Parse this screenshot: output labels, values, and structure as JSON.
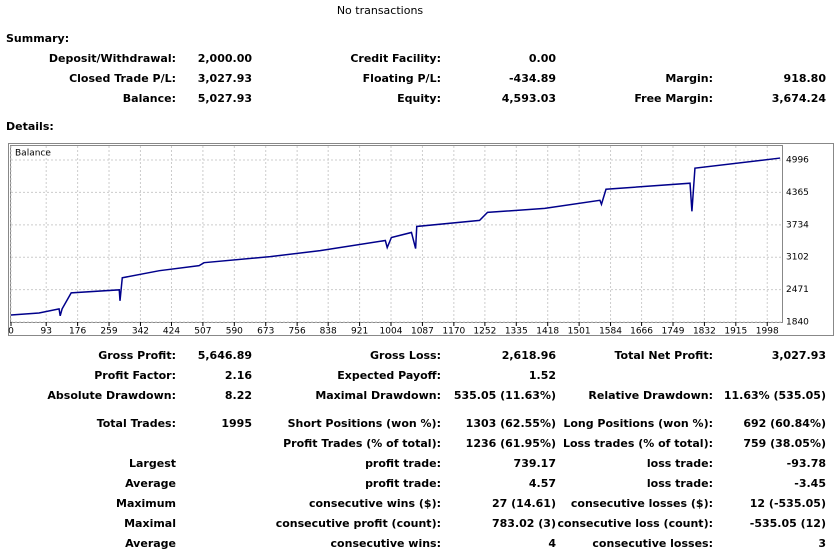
{
  "header": {
    "title": "No transactions"
  },
  "summary": {
    "heading": "Summary:",
    "rows": [
      [
        "Deposit/Withdrawal:",
        "2,000.00",
        "Credit Facility:",
        "0.00",
        null,
        null
      ],
      [
        "Closed Trade P/L:",
        "3,027.93",
        "Floating P/L:",
        "-434.89",
        "Margin:",
        "918.80"
      ],
      [
        "Balance:",
        "5,027.93",
        "Equity:",
        "4,593.03",
        "Free Margin:",
        "3,674.24"
      ]
    ]
  },
  "details": {
    "heading": "Details:",
    "rows": [
      [
        "Gross Profit:",
        "5,646.89",
        "Gross Loss:",
        "2,618.96",
        "Total Net Profit:",
        "3,027.93"
      ],
      [
        "Profit Factor:",
        "2.16",
        "Expected Payoff:",
        "1.52",
        null,
        null
      ],
      [
        "Absolute Drawdown:",
        "8.22",
        "Maximal Drawdown:",
        "535.05 (11.63%)",
        "Relative Drawdown:",
        "11.63% (535.05)"
      ],
      [
        "Total Trades:",
        "1995",
        "Short Positions (won %):",
        "1303 (62.55%)",
        "Long Positions (won %):",
        "692 (60.84%)"
      ],
      [
        null,
        null,
        "Profit Trades (% of total):",
        "1236 (61.95%)",
        "Loss trades (% of total):",
        "759 (38.05%)"
      ],
      [
        "Largest",
        null,
        "profit trade:",
        "739.17",
        "loss trade:",
        "-93.78"
      ],
      [
        "Average",
        null,
        "profit trade:",
        "4.57",
        "loss trade:",
        "-3.45"
      ],
      [
        "Maximum",
        null,
        "consecutive wins ($):",
        "27 (14.61)",
        "consecutive losses ($):",
        "12 (-535.05)"
      ],
      [
        "Maximal",
        null,
        "consecutive profit (count):",
        "783.02 (3)",
        "consecutive loss (count):",
        "-535.05 (12)"
      ],
      [
        "Average",
        null,
        "consecutive wins:",
        "4",
        "consecutive losses:",
        "3"
      ]
    ]
  },
  "chart_data": {
    "type": "line",
    "x": [
      0,
      74,
      127,
      130,
      135,
      159,
      286,
      288,
      294,
      392,
      497,
      510,
      685,
      817,
      989,
      994,
      1005,
      1058,
      1069,
      1072,
      1238,
      1259,
      1410,
      1556,
      1560,
      1572,
      1794,
      1799,
      1807,
      2032
    ],
    "series": [
      {
        "name": "Balance",
        "color": "#00008b",
        "values": [
          1977,
          2016,
          2095,
          1960,
          2095,
          2408,
          2467,
          2252,
          2702,
          2840,
          2938,
          2996,
          3114,
          3232,
          3428,
          3290,
          3487,
          3585,
          3271,
          3702,
          3820,
          3976,
          4055,
          4212,
          4134,
          4427,
          4545,
          3996,
          4839,
          5035
        ]
      }
    ],
    "xlim": [
      0,
      2037
    ],
    "ylim": [
      1840,
      5270
    ],
    "xticks": [
      0,
      93,
      176,
      259,
      342,
      424,
      507,
      590,
      673,
      756,
      838,
      921,
      1004,
      1087,
      1170,
      1252,
      1335,
      1418,
      1501,
      1584,
      1666,
      1749,
      1832,
      1915,
      1998
    ],
    "yticks": [
      1840,
      2471,
      3102,
      3734,
      4365,
      4996
    ],
    "grid": true
  }
}
